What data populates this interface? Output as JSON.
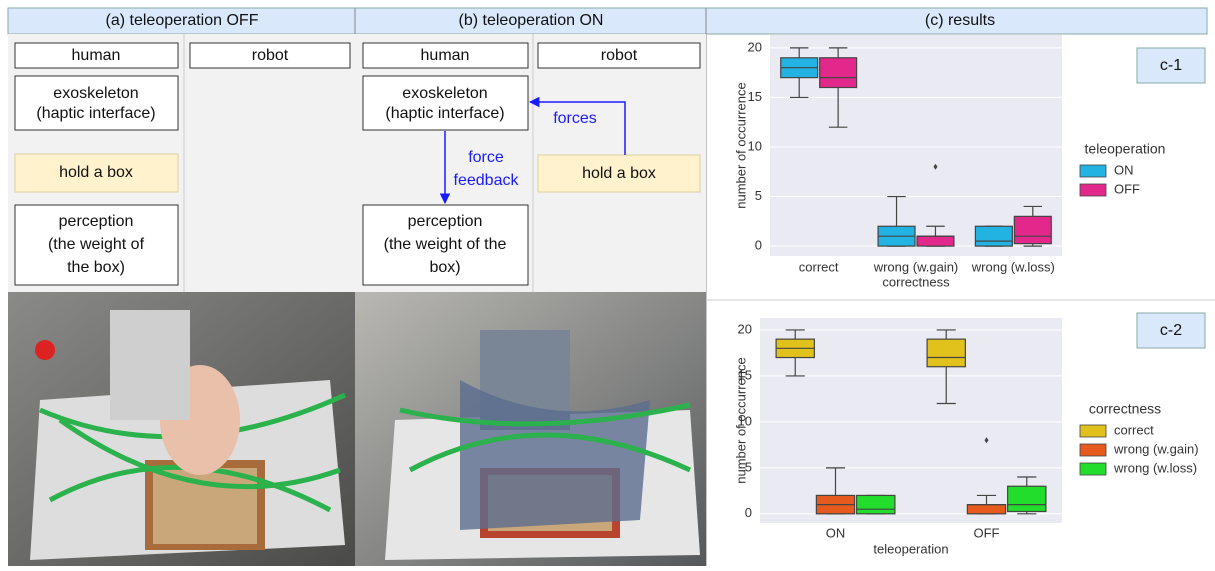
{
  "panel_a": {
    "title": "(a) teleoperation OFF",
    "columns": [
      "human",
      "robot"
    ],
    "exoskeleton": [
      "exoskeleton",
      "(haptic interface)"
    ],
    "task": "hold a box",
    "perception": [
      "perception",
      "(the weight of",
      "the box)"
    ]
  },
  "panel_b": {
    "title": "(b) teleoperation ON",
    "columns": [
      "human",
      "robot"
    ],
    "exoskeleton": [
      "exoskeleton",
      "(haptic interface)"
    ],
    "task": "hold a box",
    "perception": [
      "perception",
      "(the weight of the",
      "box)"
    ],
    "arrow_up": "forces",
    "arrow_down": [
      "force",
      "feedback"
    ]
  },
  "panel_c": {
    "title": "(c) results"
  },
  "chart_data": [
    {
      "type": "box",
      "label": "c-1",
      "ylabel": "number of occurrence",
      "xlabel": "correctness",
      "categories": [
        "correct",
        "wrong (w.gain)",
        "wrong (w.loss)"
      ],
      "legend_title": "teleoperation",
      "grid": true,
      "ylim": [
        -1,
        21.3
      ],
      "yticks": [
        0,
        5,
        10,
        15,
        20
      ],
      "series": [
        {
          "name": "ON",
          "color": "#22b3e2",
          "values": [
            {
              "min": 15,
              "q1": 17,
              "median": 18,
              "q3": 19,
              "max": 20,
              "outliers": []
            },
            {
              "min": 0,
              "q1": 0,
              "median": 1,
              "q3": 2,
              "max": 5,
              "outliers": []
            },
            {
              "min": 0,
              "q1": 0,
              "median": 0.5,
              "q3": 2,
              "max": 2,
              "outliers": []
            }
          ]
        },
        {
          "name": "OFF",
          "color": "#e3288c",
          "values": [
            {
              "min": 12,
              "q1": 16,
              "median": 17,
              "q3": 19,
              "max": 20,
              "outliers": []
            },
            {
              "min": 0,
              "q1": 0,
              "median": 1,
              "q3": 1,
              "max": 2,
              "outliers": [
                8
              ]
            },
            {
              "min": 0,
              "q1": 0.25,
              "median": 1,
              "q3": 3,
              "max": 4,
              "outliers": []
            }
          ]
        }
      ]
    },
    {
      "type": "box",
      "label": "c-2",
      "ylabel": "number of occurrence",
      "xlabel": "teleoperation",
      "categories": [
        "ON",
        "OFF"
      ],
      "legend_title": "correctness",
      "grid": true,
      "ylim": [
        -1,
        21.3
      ],
      "yticks": [
        0,
        5,
        10,
        15,
        20
      ],
      "series": [
        {
          "name": "correct",
          "color": "#e1c11c",
          "values": [
            {
              "min": 15,
              "q1": 17,
              "median": 18,
              "q3": 19,
              "max": 20,
              "outliers": []
            },
            {
              "min": 12,
              "q1": 16,
              "median": 17,
              "q3": 19,
              "max": 20,
              "outliers": []
            }
          ]
        },
        {
          "name": "wrong (w.gain)",
          "color": "#e65a1e",
          "values": [
            {
              "min": 0,
              "q1": 0,
              "median": 1,
              "q3": 2,
              "max": 5,
              "outliers": []
            },
            {
              "min": 0,
              "q1": 0,
              "median": 1,
              "q3": 1,
              "max": 2,
              "outliers": [
                8
              ]
            }
          ]
        },
        {
          "name": "wrong (w.loss)",
          "color": "#22dd2b",
          "values": [
            {
              "min": 0,
              "q1": 0,
              "median": 0.5,
              "q3": 2,
              "max": 2,
              "outliers": []
            },
            {
              "min": 0,
              "q1": 0.25,
              "median": 1,
              "q3": 3,
              "max": 4,
              "outliers": []
            }
          ]
        }
      ]
    }
  ]
}
